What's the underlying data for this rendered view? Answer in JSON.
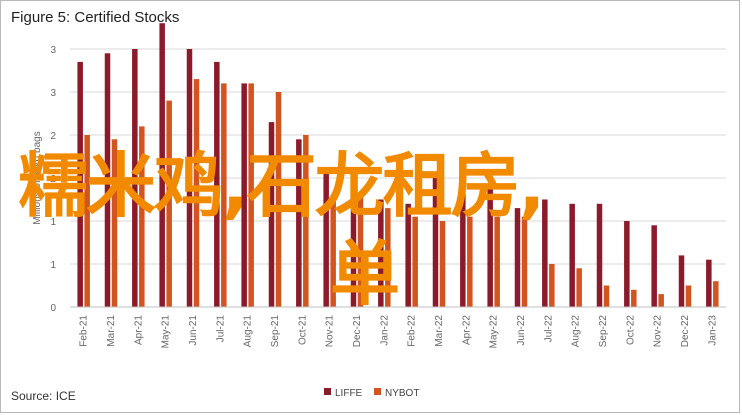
{
  "title": "Figure 5: Certified Stocks",
  "source": "Source: ICE",
  "watermark": {
    "line1": "糯米鸡,石龙租房,",
    "line2": "单"
  },
  "colors": {
    "liffe": "#8b1a2b",
    "nybot": "#d2541f",
    "grid": "#d9d9d9",
    "axis_text": "#666666",
    "watermark": "#f28a00"
  },
  "chart_data": {
    "type": "bar",
    "ylabel": "Millions of 60kg bags",
    "ylim": [
      0,
      3
    ],
    "yticks": [
      "0",
      "1",
      "1",
      "2",
      "2",
      "3",
      "3"
    ],
    "ytick_values": [
      0,
      0.5,
      1,
      1.5,
      2,
      2.5,
      3
    ],
    "grid": true,
    "legend_position": "bottom",
    "categories": [
      "Feb-21",
      "Mar-21",
      "Apr-21",
      "May-21",
      "Jun-21",
      "Jul-21",
      "Aug-21",
      "Sep-21",
      "Oct-21",
      "Nov-21",
      "Dec-21",
      "Jan-22",
      "Feb-22",
      "Mar-22",
      "Apr-22",
      "May-22",
      "Jun-22",
      "Jul-22",
      "Aug-22",
      "Sep-22",
      "Oct-22",
      "Nov-22",
      "Dec-22",
      "Jan-23"
    ],
    "series": [
      {
        "name": "LIFFE",
        "values": [
          2.85,
          2.95,
          3.0,
          3.3,
          3.0,
          2.85,
          2.6,
          2.15,
          1.95,
          1.55,
          1.3,
          1.25,
          1.2,
          1.55,
          1.5,
          1.4,
          1.15,
          1.25,
          1.2,
          1.2,
          1.0,
          0.95,
          0.6,
          0.55
        ]
      },
      {
        "name": "NYBOT",
        "values": [
          2.0,
          1.95,
          2.1,
          2.4,
          2.65,
          2.6,
          2.6,
          2.5,
          2.0,
          1.3,
          1.3,
          1.15,
          1.05,
          1.0,
          1.05,
          1.05,
          1.05,
          0.5,
          0.45,
          0.25,
          0.2,
          0.15,
          0.25,
          0.3
        ]
      }
    ]
  }
}
